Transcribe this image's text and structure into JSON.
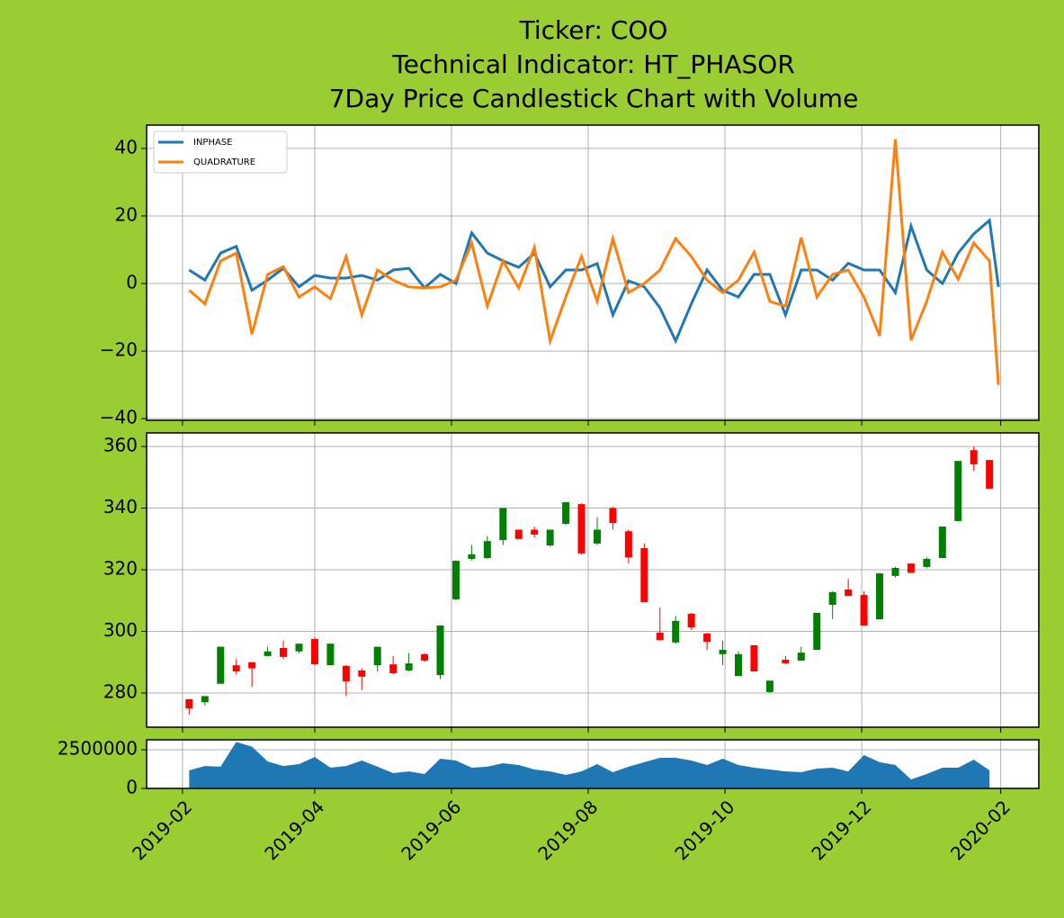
{
  "title": [
    "Ticker: COO",
    "Technical Indicator: HT_PHASOR",
    "7Day Price Candlestick Chart with Volume"
  ],
  "chart_data": [
    {
      "type": "line",
      "grid": true,
      "legend": "upper left",
      "xlim": [
        "2019-01-16",
        "2020-02-18"
      ],
      "ylim": [
        -40.5,
        46.9
      ],
      "yticks": [
        {
          "value": -40,
          "label": "−40"
        },
        {
          "value": -20,
          "label": "−20"
        },
        0,
        20,
        40
      ],
      "x": [
        "2019-02-04",
        "2019-02-11",
        "2019-02-18",
        "2019-02-25",
        "2019-03-04",
        "2019-03-11",
        "2019-03-18",
        "2019-03-25",
        "2019-04-01",
        "2019-04-08",
        "2019-04-15",
        "2019-04-22",
        "2019-04-29",
        "2019-05-06",
        "2019-05-13",
        "2019-05-20",
        "2019-05-27",
        "2019-06-03",
        "2019-06-10",
        "2019-06-17",
        "2019-06-24",
        "2019-07-01",
        "2019-07-08",
        "2019-07-15",
        "2019-07-22",
        "2019-07-29",
        "2019-08-05",
        "2019-08-12",
        "2019-08-19",
        "2019-08-26",
        "2019-09-02",
        "2019-09-09",
        "2019-09-16",
        "2019-09-23",
        "2019-09-30",
        "2019-10-07",
        "2019-10-14",
        "2019-10-21",
        "2019-10-28",
        "2019-11-04",
        "2019-11-11",
        "2019-11-18",
        "2019-11-25",
        "2019-12-02",
        "2019-12-09",
        "2019-12-16",
        "2019-12-23",
        "2019-12-30",
        "2020-01-06",
        "2020-01-13",
        "2020-01-20",
        "2020-01-27",
        "2020-01-31"
      ],
      "series": [
        {
          "name": "INPHASE",
          "color": "#1f77b4",
          "values": [
            4,
            1,
            9,
            11,
            -2,
            1,
            4.5,
            -1,
            2.4,
            1.6,
            1.6,
            2.4,
            1,
            4,
            4.5,
            -1.3,
            2.7,
            0,
            15,
            9,
            6.7,
            4.8,
            9,
            -1,
            4,
            4,
            5.9,
            -9.3,
            0.8,
            -1,
            -7.2,
            -17,
            -6,
            4,
            -2,
            -4,
            2.7,
            2.7,
            -9.3,
            4,
            4,
            1,
            6,
            4,
            4,
            -2.7,
            17,
            4,
            0,
            9,
            14.7,
            18.7,
            -1
          ]
        },
        {
          "name": "QUADRATURE",
          "color": "#ff7f0e",
          "values": [
            -2,
            -6,
            6.7,
            9,
            -15,
            2.7,
            5,
            -4,
            -1,
            -4.5,
            8,
            -9.3,
            4,
            1,
            -1,
            -1.3,
            -1,
            1,
            12,
            -6.7,
            6.7,
            -1.3,
            10.7,
            -17,
            -4,
            8,
            -5.3,
            13.3,
            -2.7,
            0,
            4,
            13.3,
            8,
            1,
            -2.7,
            1,
            9.3,
            -5.3,
            -6.7,
            13.6,
            -4,
            2.7,
            4,
            -4,
            -15.5,
            42.7,
            -16.8,
            -5.3,
            9.3,
            1.3,
            12,
            6.7,
            -30
          ]
        }
      ]
    },
    {
      "type": "candlestick",
      "grid": true,
      "up_color": "green",
      "down_color": "red",
      "xlim": [
        "2019-01-16",
        "2020-02-18"
      ],
      "ylim": [
        268.9,
        364.4
      ],
      "yticks": [
        280,
        300,
        320,
        340,
        360
      ],
      "x": [
        "2019-02-04",
        "2019-02-11",
        "2019-02-18",
        "2019-02-25",
        "2019-03-04",
        "2019-03-11",
        "2019-03-18",
        "2019-03-25",
        "2019-04-01",
        "2019-04-08",
        "2019-04-15",
        "2019-04-22",
        "2019-04-29",
        "2019-05-06",
        "2019-05-13",
        "2019-05-20",
        "2019-05-27",
        "2019-06-03",
        "2019-06-10",
        "2019-06-17",
        "2019-06-24",
        "2019-07-01",
        "2019-07-08",
        "2019-07-15",
        "2019-07-22",
        "2019-07-29",
        "2019-08-05",
        "2019-08-12",
        "2019-08-19",
        "2019-08-26",
        "2019-09-02",
        "2019-09-09",
        "2019-09-16",
        "2019-09-23",
        "2019-09-30",
        "2019-10-07",
        "2019-10-14",
        "2019-10-21",
        "2019-10-28",
        "2019-11-04",
        "2019-11-11",
        "2019-11-18",
        "2019-11-25",
        "2019-12-02",
        "2019-12-09",
        "2019-12-16",
        "2019-12-23",
        "2019-12-30",
        "2020-01-06",
        "2020-01-13",
        "2020-01-20",
        "2020-01-27"
      ],
      "open": [
        278,
        277,
        283,
        289,
        290,
        292,
        294.6,
        293.5,
        297.5,
        289,
        288.8,
        287.3,
        289,
        289.3,
        287.3,
        292.6,
        285.8,
        310.4,
        323.5,
        323.8,
        329.6,
        333,
        333,
        327.9,
        334.9,
        341.3,
        328.5,
        340,
        332.5,
        327,
        299.6,
        296.4,
        305.7,
        299.3,
        292.6,
        285.5,
        295.5,
        280.3,
        290.8,
        290.5,
        294,
        308.6,
        313.6,
        311.8,
        303.9,
        318,
        322,
        320.9,
        323.8,
        335.8,
        358.8,
        355.6
      ],
      "high": [
        278,
        279,
        295,
        291,
        290,
        295,
        297,
        296,
        298,
        296,
        289,
        288,
        295,
        292,
        293,
        293,
        302,
        323,
        328,
        331,
        340,
        333,
        334,
        333,
        342,
        341.5,
        337,
        340.5,
        333,
        328.5,
        307.7,
        305,
        306,
        299.5,
        297,
        293.5,
        295.5,
        284,
        292,
        295,
        306,
        313,
        317,
        313,
        319,
        321,
        322,
        324,
        334,
        355.3,
        360,
        355.6
      ],
      "low": [
        273,
        276,
        283,
        286,
        282,
        292,
        291,
        293,
        289,
        289,
        279,
        281,
        287,
        286,
        287,
        290,
        284.5,
        310,
        323,
        323.5,
        328,
        330,
        330.5,
        327.5,
        334.5,
        325,
        328,
        333,
        322,
        309.5,
        297,
        296,
        300.5,
        294,
        289,
        285.5,
        287,
        280,
        289.5,
        290.5,
        294,
        304,
        311.5,
        301.9,
        303.9,
        317.5,
        319,
        320.5,
        323.8,
        335.8,
        352,
        346.3
      ],
      "close": [
        275,
        279,
        295,
        287,
        288,
        293.5,
        291.7,
        296,
        289.3,
        296,
        283.8,
        285.3,
        295,
        286.4,
        289.6,
        290.5,
        301.9,
        322.9,
        325,
        329.3,
        340,
        330,
        331.4,
        333,
        341.9,
        325.3,
        333,
        335.2,
        324,
        309.5,
        297.2,
        303.4,
        301.3,
        296.6,
        294,
        292.6,
        287,
        284,
        289.6,
        293.1,
        306,
        312.7,
        311.5,
        301.9,
        318.8,
        320.6,
        319,
        323.5,
        334,
        355.3,
        354.2,
        346.3
      ]
    },
    {
      "type": "area",
      "grid": true,
      "color": "#1f77b4",
      "xlim": [
        "2019-01-16",
        "2020-02-18"
      ],
      "ylim": [
        0,
        3140000
      ],
      "yticks": [
        0,
        2500000
      ],
      "xticks": [
        {
          "value": "2019-02-01",
          "label": "2019-02"
        },
        {
          "value": "2019-04-01",
          "label": "2019-04"
        },
        {
          "value": "2019-06-01",
          "label": "2019-06"
        },
        {
          "value": "2019-08-01",
          "label": "2019-08"
        },
        {
          "value": "2019-10-01",
          "label": "2019-10"
        },
        {
          "value": "2019-12-01",
          "label": "2019-12"
        },
        {
          "value": "2020-02-01",
          "label": "2020-02"
        }
      ],
      "x": [
        "2019-02-04",
        "2019-02-11",
        "2019-02-18",
        "2019-02-25",
        "2019-03-04",
        "2019-03-11",
        "2019-03-18",
        "2019-03-25",
        "2019-04-01",
        "2019-04-08",
        "2019-04-15",
        "2019-04-22",
        "2019-04-29",
        "2019-05-06",
        "2019-05-13",
        "2019-05-20",
        "2019-05-27",
        "2019-06-03",
        "2019-06-10",
        "2019-06-17",
        "2019-06-24",
        "2019-07-01",
        "2019-07-08",
        "2019-07-15",
        "2019-07-22",
        "2019-07-29",
        "2019-08-05",
        "2019-08-12",
        "2019-08-19",
        "2019-08-26",
        "2019-09-02",
        "2019-09-09",
        "2019-09-16",
        "2019-09-23",
        "2019-09-30",
        "2019-10-07",
        "2019-10-14",
        "2019-10-21",
        "2019-10-28",
        "2019-11-04",
        "2019-11-11",
        "2019-11-18",
        "2019-11-25",
        "2019-12-02",
        "2019-12-09",
        "2019-12-16",
        "2019-12-23",
        "2019-12-30",
        "2020-01-06",
        "2020-01-13",
        "2020-01-20",
        "2020-01-27"
      ],
      "values": [
        1160000,
        1450000,
        1400000,
        3000000,
        2700000,
        1740000,
        1450000,
        1570000,
        2030000,
        1340000,
        1450000,
        1800000,
        1400000,
        990000,
        1100000,
        930000,
        1920000,
        1800000,
        1340000,
        1400000,
        1630000,
        1510000,
        1220000,
        1100000,
        870000,
        1100000,
        1570000,
        1050000,
        1400000,
        1690000,
        1980000,
        1980000,
        1800000,
        1510000,
        1920000,
        1510000,
        1340000,
        1220000,
        1100000,
        1050000,
        1280000,
        1340000,
        1100000,
        2150000,
        1690000,
        1510000,
        580000,
        930000,
        1340000,
        1340000,
        1860000,
        1160000
      ]
    }
  ]
}
